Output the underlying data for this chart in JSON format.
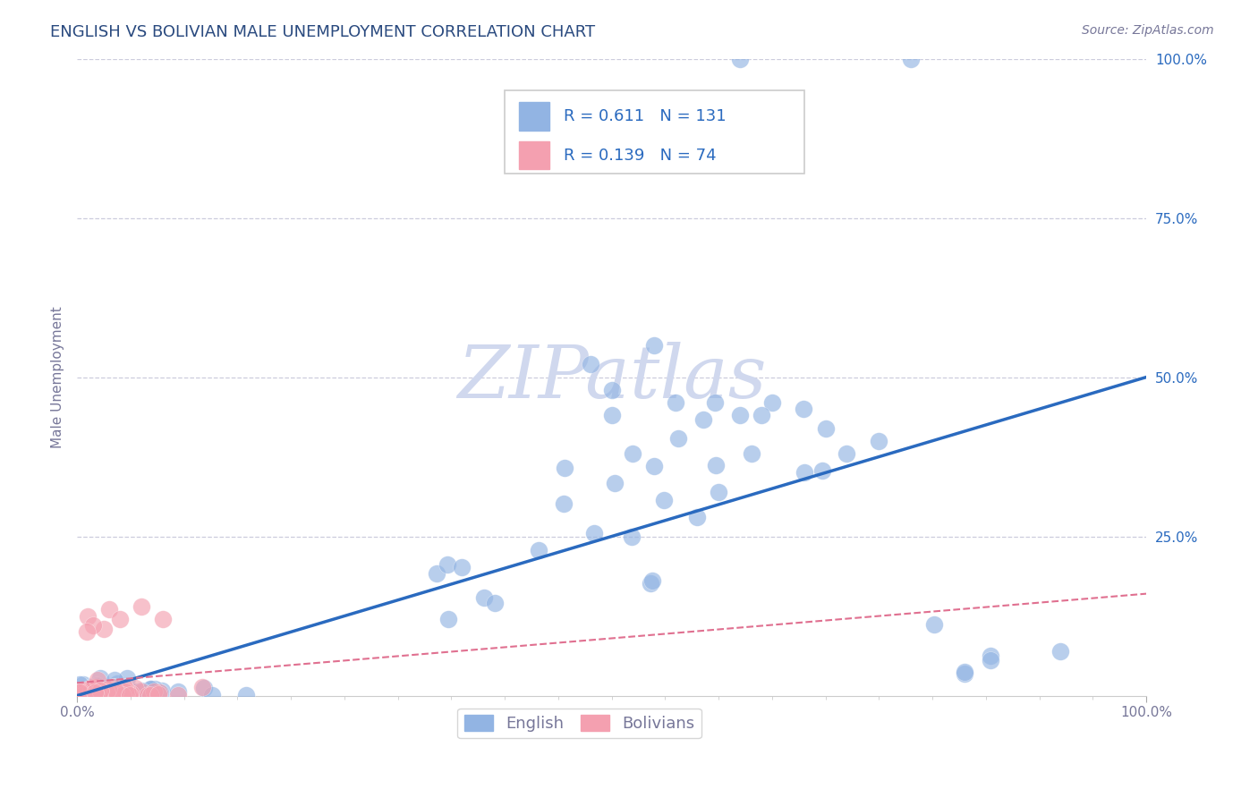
{
  "title": "ENGLISH VS BOLIVIAN MALE UNEMPLOYMENT CORRELATION CHART",
  "source_text": "Source: ZipAtlas.com",
  "ylabel": "Male Unemployment",
  "xlim": [
    0,
    1
  ],
  "ylim": [
    0,
    1
  ],
  "ytick_labels": [
    "25.0%",
    "50.0%",
    "75.0%",
    "100.0%"
  ],
  "ytick_values": [
    0.25,
    0.5,
    0.75,
    1.0
  ],
  "english_R": "0.611",
  "english_N": "131",
  "bolivian_R": "0.139",
  "bolivian_N": "74",
  "english_color": "#92b4e3",
  "bolivian_color": "#f4a0b0",
  "english_line_color": "#2a6abf",
  "bolivian_line_color": "#e07090",
  "title_color": "#2a4a7f",
  "axis_label_color": "#777799",
  "legend_text_color": "#2a6abf",
  "watermark_color": "#d0d8ee",
  "background_color": "#ffffff",
  "grid_color": "#ccccdd",
  "source_color": "#777799",
  "english_line_y0": 0.0,
  "english_line_y1": 0.5,
  "bolivian_line_y0": 0.02,
  "bolivian_line_y1": 0.16,
  "seed": 42
}
